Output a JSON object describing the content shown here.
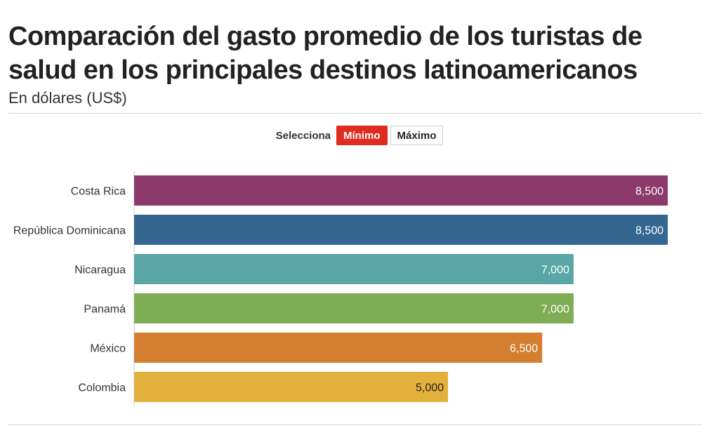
{
  "header": {
    "title": "Comparación del gasto promedio de los turistas de salud en los principales destinos latinoamericanos",
    "subtitle": "En dólares (US$)"
  },
  "selector": {
    "label": "Selecciona",
    "options": [
      "Mínimo",
      "Máximo"
    ],
    "active": "Mínimo"
  },
  "chart_data": {
    "type": "bar",
    "orientation": "horizontal",
    "title": "Comparación del gasto promedio de los turistas de salud en los principales destinos latinoamericanos",
    "subtitle": "En dólares (US$)",
    "categories": [
      "Costa Rica",
      "República Dominicana",
      "Nicaragua",
      "Panamá",
      "México",
      "Colombia"
    ],
    "values": [
      8500,
      8500,
      7000,
      7000,
      6500,
      5000
    ],
    "value_labels": [
      "8,500",
      "8,500",
      "7,000",
      "7,000",
      "6,500",
      "5,000"
    ],
    "colors": [
      "#8b3a6b",
      "#336791",
      "#5aa5a6",
      "#7fad55",
      "#d47f2f",
      "#e3b03c"
    ],
    "label_colors": [
      "#ffffff",
      "#ffffff",
      "#ffffff",
      "#ffffff",
      "#ffffff",
      "#222222"
    ],
    "xlabel": "",
    "ylabel": "",
    "xlim": [
      0,
      8500
    ],
    "grid": false,
    "legend": "none"
  }
}
